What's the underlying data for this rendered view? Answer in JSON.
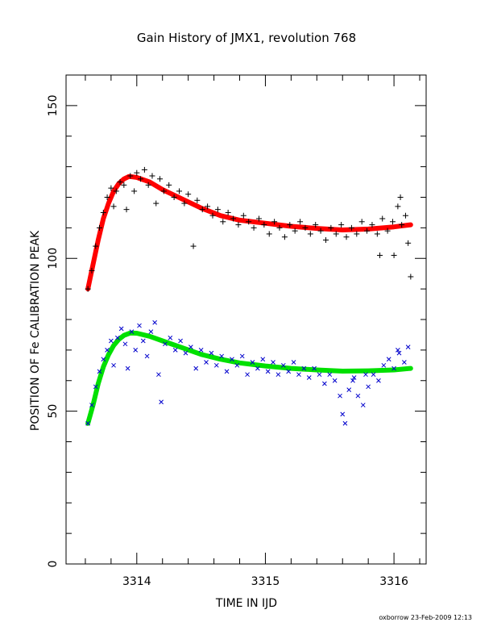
{
  "chart_data": {
    "type": "scatter",
    "title": "Gain History of JMX1, revolution 768",
    "xlabel": "TIME IN IJD",
    "ylabel": "POSITION OF Fe CALIBRATION PEAK",
    "xlim": [
      3313.45,
      3316.25
    ],
    "ylim": [
      0,
      160
    ],
    "x_ticks": [
      3314,
      3315,
      3316
    ],
    "y_ticks": [
      0,
      50,
      100,
      150
    ],
    "grid": false,
    "series": [
      {
        "marker": "plus",
        "color": "#000000",
        "points": [
          [
            3313.62,
            90
          ],
          [
            3313.65,
            96
          ],
          [
            3313.68,
            104
          ],
          [
            3313.71,
            110
          ],
          [
            3313.74,
            115
          ],
          [
            3313.77,
            120
          ],
          [
            3313.8,
            123
          ],
          [
            3313.82,
            117
          ],
          [
            3313.84,
            122
          ],
          [
            3313.87,
            125
          ],
          [
            3313.9,
            124
          ],
          [
            3313.92,
            116
          ],
          [
            3313.95,
            127
          ],
          [
            3313.98,
            122
          ],
          [
            3314.0,
            128
          ],
          [
            3314.03,
            126
          ],
          [
            3314.06,
            129
          ],
          [
            3314.09,
            124
          ],
          [
            3314.12,
            127
          ],
          [
            3314.15,
            118
          ],
          [
            3314.18,
            126
          ],
          [
            3314.21,
            122
          ],
          [
            3314.25,
            124
          ],
          [
            3314.29,
            120
          ],
          [
            3314.33,
            122
          ],
          [
            3314.37,
            118
          ],
          [
            3314.4,
            121
          ],
          [
            3314.44,
            104
          ],
          [
            3314.47,
            119
          ],
          [
            3314.51,
            116
          ],
          [
            3314.55,
            117
          ],
          [
            3314.59,
            114
          ],
          [
            3314.63,
            116
          ],
          [
            3314.67,
            112
          ],
          [
            3314.71,
            115
          ],
          [
            3314.75,
            113
          ],
          [
            3314.79,
            111
          ],
          [
            3314.83,
            114
          ],
          [
            3314.87,
            112
          ],
          [
            3314.91,
            110
          ],
          [
            3314.95,
            113
          ],
          [
            3314.99,
            111
          ],
          [
            3315.03,
            108
          ],
          [
            3315.07,
            112
          ],
          [
            3315.11,
            110
          ],
          [
            3315.15,
            107
          ],
          [
            3315.19,
            111
          ],
          [
            3315.23,
            109
          ],
          [
            3315.27,
            112
          ],
          [
            3315.31,
            110
          ],
          [
            3315.35,
            108
          ],
          [
            3315.39,
            111
          ],
          [
            3315.43,
            109
          ],
          [
            3315.47,
            106
          ],
          [
            3315.51,
            110
          ],
          [
            3315.55,
            108
          ],
          [
            3315.59,
            111
          ],
          [
            3315.63,
            107
          ],
          [
            3315.67,
            110
          ],
          [
            3315.71,
            108
          ],
          [
            3315.75,
            112
          ],
          [
            3315.79,
            109
          ],
          [
            3315.83,
            111
          ],
          [
            3315.87,
            108
          ],
          [
            3315.91,
            113
          ],
          [
            3315.95,
            109
          ],
          [
            3315.99,
            112
          ],
          [
            3316.03,
            117
          ],
          [
            3316.06,
            111
          ],
          [
            3316.09,
            114
          ],
          [
            3316.11,
            105
          ],
          [
            3316.13,
            94
          ],
          [
            3316.0,
            101
          ],
          [
            3315.89,
            101
          ],
          [
            3316.05,
            120
          ]
        ]
      },
      {
        "marker": "cross",
        "color": "#0000cc",
        "points": [
          [
            3313.62,
            46
          ],
          [
            3313.65,
            52
          ],
          [
            3313.68,
            58
          ],
          [
            3313.71,
            63
          ],
          [
            3313.74,
            67
          ],
          [
            3313.77,
            70
          ],
          [
            3313.8,
            73
          ],
          [
            3313.82,
            65
          ],
          [
            3313.85,
            74
          ],
          [
            3313.88,
            77
          ],
          [
            3313.91,
            72
          ],
          [
            3313.93,
            64
          ],
          [
            3313.96,
            76
          ],
          [
            3313.99,
            70
          ],
          [
            3314.02,
            78
          ],
          [
            3314.05,
            73
          ],
          [
            3314.08,
            68
          ],
          [
            3314.11,
            76
          ],
          [
            3314.14,
            79
          ],
          [
            3314.17,
            62
          ],
          [
            3314.19,
            53
          ],
          [
            3314.22,
            72
          ],
          [
            3314.26,
            74
          ],
          [
            3314.3,
            70
          ],
          [
            3314.34,
            73
          ],
          [
            3314.38,
            69
          ],
          [
            3314.42,
            71
          ],
          [
            3314.46,
            64
          ],
          [
            3314.5,
            70
          ],
          [
            3314.54,
            66
          ],
          [
            3314.58,
            69
          ],
          [
            3314.62,
            65
          ],
          [
            3314.66,
            68
          ],
          [
            3314.7,
            63
          ],
          [
            3314.74,
            67
          ],
          [
            3314.78,
            65
          ],
          [
            3314.82,
            68
          ],
          [
            3314.86,
            62
          ],
          [
            3314.9,
            66
          ],
          [
            3314.94,
            64
          ],
          [
            3314.98,
            67
          ],
          [
            3315.02,
            63
          ],
          [
            3315.06,
            66
          ],
          [
            3315.1,
            62
          ],
          [
            3315.14,
            65
          ],
          [
            3315.18,
            63
          ],
          [
            3315.22,
            66
          ],
          [
            3315.26,
            62
          ],
          [
            3315.3,
            64
          ],
          [
            3315.34,
            61
          ],
          [
            3315.38,
            64
          ],
          [
            3315.42,
            62
          ],
          [
            3315.46,
            59
          ],
          [
            3315.5,
            62
          ],
          [
            3315.54,
            60
          ],
          [
            3315.58,
            55
          ],
          [
            3315.6,
            49
          ],
          [
            3315.62,
            46
          ],
          [
            3315.65,
            57
          ],
          [
            3315.68,
            60
          ],
          [
            3315.72,
            55
          ],
          [
            3315.76,
            52
          ],
          [
            3315.8,
            58
          ],
          [
            3315.84,
            62
          ],
          [
            3315.88,
            60
          ],
          [
            3315.92,
            65
          ],
          [
            3315.96,
            67
          ],
          [
            3316.0,
            64
          ],
          [
            3316.04,
            69
          ],
          [
            3316.08,
            66
          ],
          [
            3316.11,
            71
          ],
          [
            3316.03,
            70
          ],
          [
            3315.78,
            62
          ],
          [
            3315.69,
            61
          ]
        ]
      },
      {
        "marker": "fit-line",
        "color": "#ff0000",
        "x": [
          3313.62,
          3313.66,
          3313.7,
          3313.74,
          3313.78,
          3313.82,
          3313.86,
          3313.9,
          3313.94,
          3314.0,
          3314.1,
          3314.2,
          3314.35,
          3314.5,
          3314.65,
          3314.8,
          3315.0,
          3315.2,
          3315.4,
          3315.6,
          3315.8,
          3316.0,
          3316.13
        ],
        "y": [
          90,
          98,
          106,
          113,
          118,
          122,
          124.5,
          126,
          126.8,
          126.5,
          125,
          122.5,
          119.5,
          116.5,
          114,
          112.5,
          111.5,
          110.5,
          109.8,
          109.3,
          109.6,
          110.3,
          111
        ]
      },
      {
        "marker": "fit-line",
        "color": "#00e000",
        "x": [
          3313.62,
          3313.66,
          3313.7,
          3313.74,
          3313.78,
          3313.82,
          3313.86,
          3313.9,
          3313.95,
          3314.0,
          3314.1,
          3314.2,
          3314.35,
          3314.5,
          3314.65,
          3314.8,
          3315.0,
          3315.2,
          3315.4,
          3315.6,
          3315.8,
          3316.0,
          3316.13
        ],
        "y": [
          46,
          52,
          59,
          64.5,
          68.5,
          71.5,
          73.5,
          74.8,
          75.6,
          75.5,
          74.5,
          73,
          70.8,
          68.6,
          67,
          65.8,
          64.8,
          64,
          63.5,
          63.1,
          63.2,
          63.5,
          64
        ]
      }
    ],
    "footer_note": "oxborrow 23-Feb-2009 12:13"
  }
}
